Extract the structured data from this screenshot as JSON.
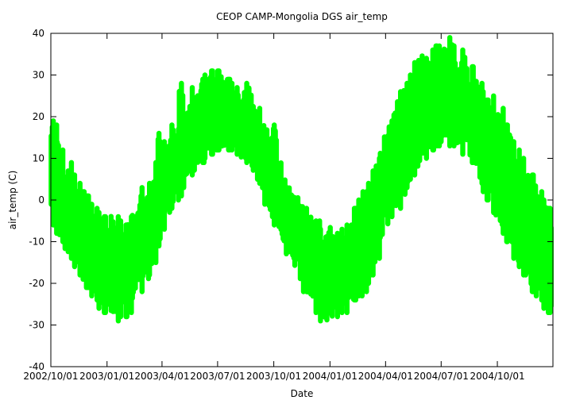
{
  "chart_data": {
    "type": "scatter",
    "title": "CEOP CAMP-Mongolia DGS  air_temp",
    "xlabel": "Date",
    "ylabel": "air_temp (C)",
    "x_tick_labels": [
      "2002/10/01",
      "2003/01/01",
      "2003/04/01",
      "2003/07/01",
      "2003/10/01",
      "2004/01/01",
      "2004/04/01",
      "2004/07/01",
      "2004/10/01"
    ],
    "y_ticks": [
      -40,
      -30,
      -20,
      -10,
      0,
      10,
      20,
      30,
      40
    ],
    "ylim": [
      -40,
      40
    ],
    "xlim": [
      "2002/10/01",
      "2004/12/31"
    ],
    "grid": false,
    "legend": "none",
    "marker_color": "#00ff00",
    "series": [
      {
        "x": [
          "2002/10/01",
          "2002/10/08",
          "2002/10/15",
          "2002/10/22",
          "2002/10/29",
          "2002/11/05",
          "2002/11/12",
          "2002/11/19",
          "2002/11/26",
          "2002/12/03",
          "2002/12/10",
          "2002/12/17",
          "2002/12/24",
          "2002/12/31",
          "2003/01/07",
          "2003/01/14",
          "2003/01/21",
          "2003/01/28",
          "2003/02/04",
          "2003/02/11",
          "2003/02/18",
          "2003/02/25",
          "2003/03/04",
          "2003/03/11",
          "2003/03/18",
          "2003/03/25",
          "2003/04/01",
          "2003/04/08",
          "2003/04/15",
          "2003/04/22",
          "2003/04/29",
          "2003/05/06",
          "2003/05/13",
          "2003/05/20",
          "2003/05/27",
          "2003/06/03",
          "2003/06/10",
          "2003/06/17",
          "2003/06/24",
          "2003/07/01",
          "2003/07/08",
          "2003/07/15",
          "2003/07/22",
          "2003/07/29",
          "2003/08/05",
          "2003/08/12",
          "2003/08/19",
          "2003/08/26",
          "2003/09/02",
          "2003/09/09",
          "2003/09/16",
          "2003/09/23",
          "2003/09/30",
          "2003/10/07",
          "2003/10/14",
          "2003/10/21",
          "2003/10/28",
          "2003/11/04",
          "2003/11/11",
          "2003/11/18",
          "2003/11/25",
          "2003/12/02",
          "2003/12/09",
          "2003/12/16",
          "2003/12/23",
          "2003/12/30",
          "2004/01/06",
          "2004/01/13",
          "2004/01/20",
          "2004/01/27",
          "2004/02/03",
          "2004/02/10",
          "2004/02/17",
          "2004/02/24",
          "2004/03/02",
          "2004/03/09",
          "2004/03/16",
          "2004/03/23",
          "2004/03/30",
          "2004/04/06",
          "2004/04/13",
          "2004/04/20",
          "2004/04/27",
          "2004/05/04",
          "2004/05/11",
          "2004/05/18",
          "2004/05/25",
          "2004/06/01",
          "2004/06/08",
          "2004/06/15",
          "2004/06/22",
          "2004/06/29",
          "2004/07/06",
          "2004/07/13",
          "2004/07/20",
          "2004/07/27",
          "2004/08/03",
          "2004/08/10",
          "2004/08/17",
          "2004/08/24",
          "2004/08/31",
          "2004/09/07",
          "2004/09/14",
          "2004/09/21",
          "2004/09/28",
          "2004/10/05",
          "2004/10/12",
          "2004/10/19",
          "2004/10/26",
          "2004/11/02",
          "2004/11/09",
          "2004/11/16",
          "2004/11/23",
          "2004/11/30",
          "2004/12/07",
          "2004/12/14",
          "2004/12/21",
          "2004/12/28"
        ],
        "ymin": [
          -6,
          -8,
          -10,
          -13,
          -14,
          -16,
          -18,
          -19,
          -21,
          -23,
          -24,
          -26,
          -27,
          -28,
          -30,
          -29,
          -28,
          -28,
          -27,
          -25,
          -22,
          -22,
          -20,
          -18,
          -15,
          -11,
          -7,
          -5,
          -2,
          0,
          1,
          3,
          5,
          6,
          7,
          9,
          10,
          11,
          12,
          12,
          11,
          12,
          12,
          11,
          10,
          9,
          8,
          6,
          4,
          2,
          -1,
          -4,
          -6,
          -9,
          -11,
          -14,
          -16,
          -18,
          -20,
          -22,
          -24,
          -25,
          -27,
          -29,
          -30,
          -31,
          -29,
          -28,
          -27,
          -27,
          -26,
          -24,
          -23,
          -22,
          -20,
          -18,
          -14,
          -11,
          -8,
          -4,
          -3,
          -2,
          0,
          3,
          5,
          6,
          8,
          10,
          11,
          12,
          13,
          14,
          14,
          13,
          13,
          12,
          11,
          10,
          9,
          6,
          4,
          2,
          0,
          -3,
          -5,
          -8,
          -10,
          -12,
          -14,
          -16,
          -18,
          -20,
          -22,
          -23,
          -24,
          -26,
          -27,
          -28
        ],
        "ymax": [
          19,
          18,
          12,
          8,
          9,
          6,
          4,
          2,
          1,
          -1,
          -2,
          -3,
          -4,
          -5,
          -2,
          -4,
          -5,
          -6,
          -4,
          -2,
          0,
          3,
          2,
          4,
          9,
          16,
          14,
          13,
          18,
          17,
          28,
          22,
          24,
          27,
          26,
          29,
          30,
          31,
          29,
          31,
          30,
          29,
          28,
          27,
          26,
          28,
          29,
          24,
          22,
          19,
          17,
          15,
          18,
          10,
          7,
          4,
          3,
          2,
          0,
          -2,
          -3,
          -4,
          -5,
          -7,
          -6,
          -6,
          -7,
          -8,
          -7,
          -6,
          -4,
          -2,
          0,
          2,
          4,
          7,
          10,
          14,
          17,
          19,
          22,
          26,
          27,
          28,
          30,
          33,
          35,
          34,
          33,
          36,
          37,
          34,
          38,
          39,
          37,
          35,
          36,
          34,
          32,
          30,
          28,
          26,
          24,
          25,
          23,
          22,
          18,
          17,
          14,
          12,
          10,
          8,
          6,
          4,
          2,
          0,
          -2,
          -4
        ]
      }
    ]
  }
}
